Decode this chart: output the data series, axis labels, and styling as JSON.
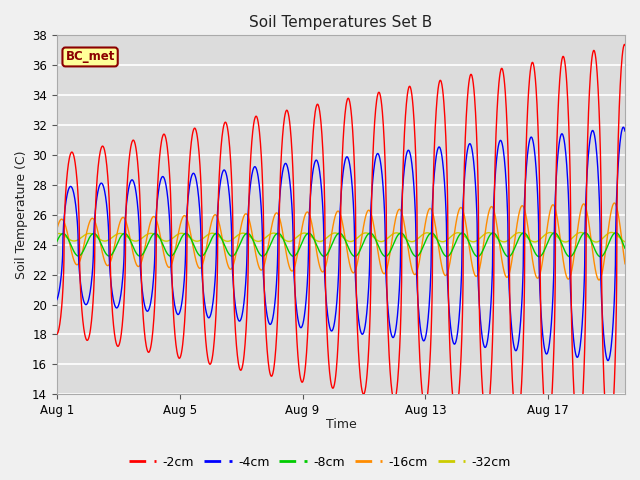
{
  "title": "Soil Temperatures Set B",
  "xlabel": "Time",
  "ylabel": "Soil Temperature (C)",
  "ylim": [
    14,
    38
  ],
  "yticks": [
    14,
    16,
    18,
    20,
    22,
    24,
    26,
    28,
    30,
    32,
    34,
    36,
    38
  ],
  "xtick_labels": [
    "Aug 1",
    "Aug 5",
    "Aug 9",
    "Aug 13",
    "Aug 17"
  ],
  "xtick_positions": [
    0,
    4,
    8,
    12,
    16
  ],
  "annotation_text": "BC_met",
  "annotation_color": "#8B0000",
  "annotation_bg": "#FFFF99",
  "series_colors": [
    "#FF0000",
    "#0000FF",
    "#00CC00",
    "#FF8C00",
    "#CCCC00"
  ],
  "series_labels": [
    "-2cm",
    "-4cm",
    "-8cm",
    "-16cm",
    "-32cm"
  ],
  "n_days": 18.5,
  "fig_bg": "#F0F0F0",
  "plot_bg": "#DCDCDC",
  "grid_color": "#FFFFFF"
}
